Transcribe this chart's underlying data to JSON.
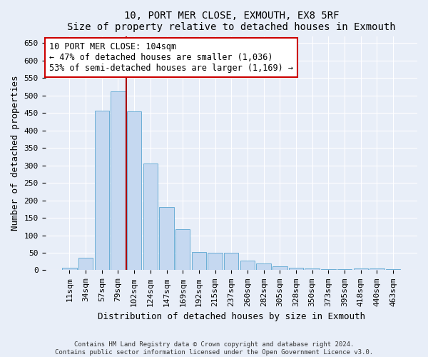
{
  "title1": "10, PORT MER CLOSE, EXMOUTH, EX8 5RF",
  "title2": "Size of property relative to detached houses in Exmouth",
  "xlabel": "Distribution of detached houses by size in Exmouth",
  "ylabel": "Number of detached properties",
  "categories": [
    "11sqm",
    "34sqm",
    "57sqm",
    "79sqm",
    "102sqm",
    "124sqm",
    "147sqm",
    "169sqm",
    "192sqm",
    "215sqm",
    "237sqm",
    "260sqm",
    "282sqm",
    "305sqm",
    "328sqm",
    "350sqm",
    "373sqm",
    "395sqm",
    "418sqm",
    "440sqm",
    "463sqm"
  ],
  "values": [
    7,
    35,
    457,
    512,
    455,
    305,
    180,
    118,
    51,
    50,
    50,
    27,
    20,
    12,
    8,
    4,
    2,
    2,
    5,
    5,
    3
  ],
  "bar_color": "#c5d8f0",
  "bar_edgecolor": "#6baed6",
  "vline_pos": 3.5,
  "vline_color": "#aa0000",
  "annotation_text": "10 PORT MER CLOSE: 104sqm\n← 47% of detached houses are smaller (1,036)\n53% of semi-detached houses are larger (1,169) →",
  "annotation_box_edgecolor": "#cc0000",
  "ylim": [
    0,
    670
  ],
  "yticks": [
    0,
    50,
    100,
    150,
    200,
    250,
    300,
    350,
    400,
    450,
    500,
    550,
    600,
    650
  ],
  "footer1": "Contains HM Land Registry data © Crown copyright and database right 2024.",
  "footer2": "Contains public sector information licensed under the Open Government Licence v3.0.",
  "bg_color": "#e8eef8",
  "plot_bg_color": "#e8eef8",
  "title_fontsize": 10,
  "tick_fontsize": 8,
  "label_fontsize": 9
}
